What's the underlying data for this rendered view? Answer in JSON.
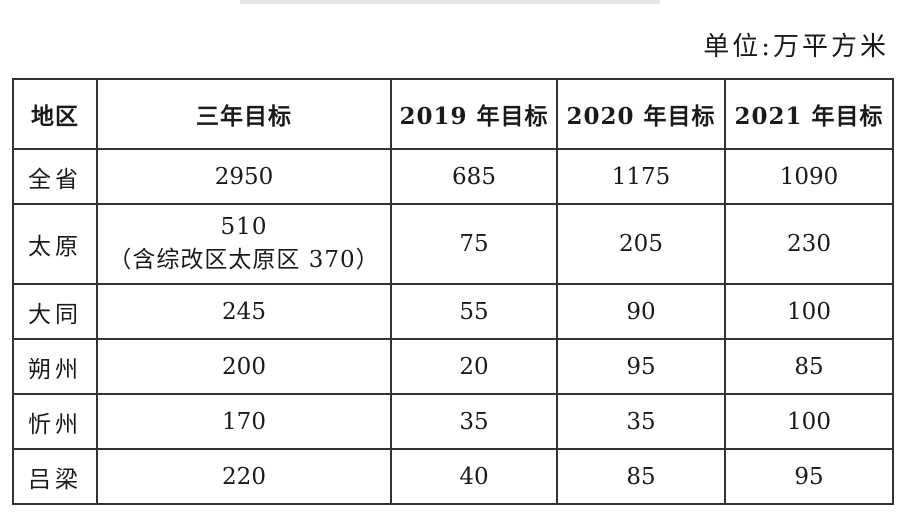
{
  "unit": "单位:万平方米",
  "table": {
    "headers": [
      "地区",
      "三年目标",
      "2019 年目标",
      "2020 年目标",
      "2021 年目标"
    ],
    "rows": [
      {
        "region": "全省",
        "three_year": "2950",
        "note": "",
        "y2019": "685",
        "y2020": "1175",
        "y2021": "1090"
      },
      {
        "region": "太原",
        "three_year": "510",
        "note": "（含综改区太原区 370）",
        "y2019": "75",
        "y2020": "205",
        "y2021": "230"
      },
      {
        "region": "大同",
        "three_year": "245",
        "note": "",
        "y2019": "55",
        "y2020": "90",
        "y2021": "100"
      },
      {
        "region": "朔州",
        "three_year": "200",
        "note": "",
        "y2019": "20",
        "y2020": "95",
        "y2021": "85"
      },
      {
        "region": "忻州",
        "three_year": "170",
        "note": "",
        "y2019": "35",
        "y2020": "35",
        "y2021": "100"
      },
      {
        "region": "吕梁",
        "three_year": "220",
        "note": "",
        "y2019": "40",
        "y2020": "85",
        "y2021": "95"
      }
    ]
  }
}
